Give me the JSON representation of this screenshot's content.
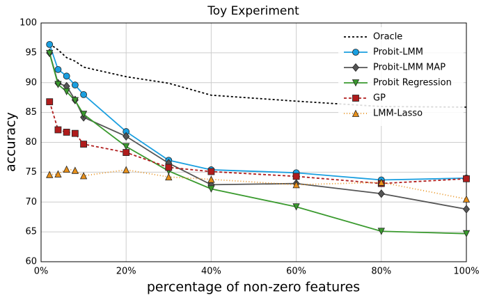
{
  "chart_data": {
    "type": "line",
    "title": "Toy Experiment",
    "x_label": "percentage of non-zero features",
    "y_label": "accuracy",
    "x": [
      2,
      4,
      6,
      8,
      10,
      20,
      30,
      40,
      60,
      80,
      100
    ],
    "xlim": [
      0,
      100
    ],
    "xticks": [
      {
        "value": 0,
        "label": "0%"
      },
      {
        "value": 20,
        "label": "20%"
      },
      {
        "value": 40,
        "label": "40%"
      },
      {
        "value": 60,
        "label": "60%"
      },
      {
        "value": 80,
        "label": "80%"
      },
      {
        "value": 100,
        "label": "100%"
      }
    ],
    "ylim": [
      60,
      100
    ],
    "yticks": [
      60,
      65,
      70,
      75,
      80,
      85,
      90,
      95,
      100
    ],
    "grid": true,
    "legend": "upper right",
    "series": [
      {
        "name": "Oracle",
        "color": "#000000",
        "dash": "3,3",
        "marker": "none",
        "values": [
          96.5,
          95.5,
          94.2,
          93.6,
          92.6,
          91,
          89.9,
          87.9,
          86.9,
          86,
          85.9
        ]
      },
      {
        "name": "Probit-LMM",
        "color": "#1a9fe0",
        "dash": "none",
        "marker": "circle",
        "values": [
          96.4,
          92.2,
          91.1,
          89.6,
          88,
          81.8,
          77,
          75.4,
          74.9,
          73.7,
          74
        ]
      },
      {
        "name": "Probit-LMM MAP",
        "color": "#555555",
        "dash": "none",
        "marker": "diamond",
        "values": [
          95,
          89.9,
          89.4,
          87.1,
          84.2,
          81,
          76.5,
          72.9,
          73.1,
          71.4,
          68.8
        ]
      },
      {
        "name": "Probit Regression",
        "color": "#3a9a2e",
        "dash": "none",
        "marker": "triangle-down",
        "values": [
          94.9,
          89.7,
          88.5,
          87,
          84.7,
          79.3,
          75.2,
          72.2,
          69.2,
          65.1,
          64.7
        ]
      },
      {
        "name": "GP",
        "color": "#b01c1c",
        "dash": "4,3",
        "marker": "square",
        "values": [
          86.8,
          82.1,
          81.7,
          81.5,
          79.7,
          78.3,
          75.8,
          75.1,
          74.3,
          73.1,
          73.9
        ]
      },
      {
        "name": "LMM-Lasso",
        "color": "#e8901a",
        "dash": "1,3",
        "marker": "triangle-up",
        "values": [
          74.6,
          74.7,
          75.5,
          75.3,
          74.4,
          75.4,
          74.2,
          73.8,
          72.9,
          73.3,
          70.5
        ]
      }
    ]
  }
}
